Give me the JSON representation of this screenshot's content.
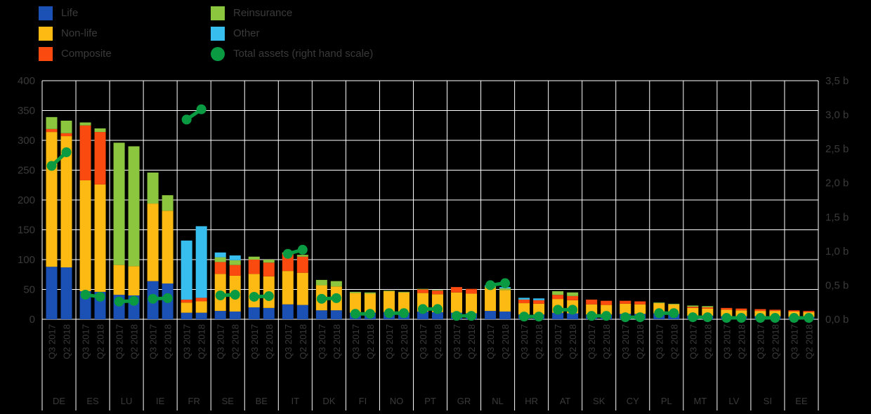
{
  "legend": {
    "items": [
      {
        "label": "Life",
        "color": "#1b50b4",
        "shape": "square"
      },
      {
        "label": "Non-life",
        "color": "#fdba12",
        "shape": "square"
      },
      {
        "label": "Composite",
        "color": "#fb4a0f",
        "shape": "square"
      },
      {
        "label": "Reinsurance",
        "color": "#8cc63e",
        "shape": "square"
      },
      {
        "label": "Other",
        "color": "#38bdef",
        "shape": "square"
      },
      {
        "label": "Total assets (right hand scale)",
        "color": "#0a9a41",
        "shape": "circle"
      }
    ]
  },
  "chart_data": {
    "type": "bar",
    "stacked": true,
    "grid": true,
    "series_names": [
      "Life",
      "Non-life",
      "Composite",
      "Reinsurance",
      "Other"
    ],
    "series_keys": [
      "life",
      "non_life",
      "composite",
      "reinsurance",
      "other"
    ],
    "dot_series_name": "Total assets (right hand scale)",
    "periods": [
      "Q3 2017",
      "Q2 2018"
    ],
    "left_axis": {
      "ticks": [
        "400",
        "350",
        "300",
        "250",
        "200",
        "150",
        "100",
        "50",
        "0"
      ],
      "min": 0,
      "max": 400
    },
    "right_axis": {
      "ticks": [
        "3,5 b",
        "3,0 b",
        "2,5 b",
        "2,0 b",
        "1,5 b",
        "1,0 b",
        "0,5 b",
        "0,0 b"
      ],
      "min": 0,
      "max": 3.5
    },
    "colors": {
      "life": "#1b50b4",
      "non_life": "#fdba12",
      "composite": "#fb4a0f",
      "reinsurance": "#8cc63e",
      "other": "#38bdef",
      "total_assets": "#0a9a41",
      "grid": "#ffffff",
      "text": "#3a3a3a",
      "background": "#000000"
    },
    "countries": [
      {
        "code": "DE",
        "values": [
          [
            88,
            226,
            5,
            20,
            0
          ],
          [
            87,
            220,
            5,
            21,
            0
          ]
        ],
        "assets": [
          2.25,
          2.45
        ]
      },
      {
        "code": "ES",
        "values": [
          [
            47,
            186,
            92,
            5,
            0
          ],
          [
            46,
            180,
            88,
            6,
            0
          ]
        ],
        "assets": [
          0.36,
          0.33
        ]
      },
      {
        "code": "LU",
        "values": [
          [
            41,
            50,
            0,
            205,
            0
          ],
          [
            40,
            49,
            0,
            201,
            0
          ]
        ],
        "assets": [
          0.26,
          0.27
        ]
      },
      {
        "code": "IE",
        "values": [
          [
            64,
            130,
            0,
            52,
            0
          ],
          [
            60,
            122,
            0,
            26,
            0
          ]
        ],
        "assets": [
          0.3,
          0.31
        ]
      },
      {
        "code": "FR",
        "values": [
          [
            11,
            17,
            5,
            0,
            99
          ],
          [
            11,
            19,
            6,
            0,
            120
          ]
        ],
        "assets": [
          2.93,
          3.08
        ]
      },
      {
        "code": "SE",
        "values": [
          [
            14,
            62,
            20,
            8,
            8
          ],
          [
            13,
            60,
            18,
            8,
            8
          ]
        ],
        "assets": [
          0.35,
          0.36
        ]
      },
      {
        "code": "BE",
        "values": [
          [
            20,
            56,
            24,
            5,
            0
          ],
          [
            19,
            53,
            23,
            5,
            0
          ]
        ],
        "assets": [
          0.33,
          0.34
        ]
      },
      {
        "code": "IT",
        "values": [
          [
            25,
            56,
            28,
            3,
            0
          ],
          [
            24,
            54,
            27,
            3,
            0
          ]
        ],
        "assets": [
          0.96,
          1.02
        ]
      },
      {
        "code": "DK",
        "values": [
          [
            15,
            42,
            0,
            9,
            0
          ],
          [
            15,
            40,
            0,
            9,
            0
          ]
        ],
        "assets": [
          0.3,
          0.31
        ]
      },
      {
        "code": "FI",
        "values": [
          [
            11,
            33,
            0,
            2,
            0
          ],
          [
            11,
            32,
            0,
            2,
            0
          ]
        ],
        "assets": [
          0.08,
          0.08
        ]
      },
      {
        "code": "NO",
        "values": [
          [
            12,
            35,
            0,
            1,
            0
          ],
          [
            11,
            34,
            0,
            1,
            0
          ]
        ],
        "assets": [
          0.09,
          0.09
        ]
      },
      {
        "code": "PT",
        "values": [
          [
            13,
            31,
            6,
            1,
            0
          ],
          [
            12,
            30,
            6,
            1,
            0
          ]
        ],
        "assets": [
          0.15,
          0.15
        ]
      },
      {
        "code": "GR",
        "values": [
          [
            11,
            34,
            9,
            0,
            0
          ],
          [
            10,
            33,
            8,
            0,
            0
          ]
        ],
        "assets": [
          0.05,
          0.05
        ]
      },
      {
        "code": "NL",
        "values": [
          [
            14,
            38,
            0,
            3,
            2
          ],
          [
            13,
            36,
            0,
            3,
            2
          ]
        ],
        "assets": [
          0.5,
          0.53
        ]
      },
      {
        "code": "HR",
        "values": [
          [
            8,
            19,
            6,
            0,
            3
          ],
          [
            8,
            18,
            6,
            0,
            3
          ]
        ],
        "assets": [
          0.04,
          0.04
        ]
      },
      {
        "code": "AT",
        "values": [
          [
            11,
            23,
            7,
            6,
            0
          ],
          [
            10,
            22,
            7,
            6,
            0
          ]
        ],
        "assets": [
          0.14,
          0.14
        ]
      },
      {
        "code": "SK",
        "values": [
          [
            8,
            17,
            8,
            0,
            0
          ],
          [
            8,
            16,
            7,
            0,
            0
          ]
        ],
        "assets": [
          0.05,
          0.05
        ]
      },
      {
        "code": "CY",
        "values": [
          [
            9,
            17,
            5,
            0,
            0
          ],
          [
            9,
            16,
            5,
            0,
            0
          ]
        ],
        "assets": [
          0.03,
          0.03
        ]
      },
      {
        "code": "PL",
        "values": [
          [
            10,
            17,
            0,
            1,
            0
          ],
          [
            9,
            16,
            0,
            1,
            0
          ]
        ],
        "assets": [
          0.09,
          0.09
        ]
      },
      {
        "code": "MT",
        "values": [
          [
            6,
            13,
            2,
            2,
            0
          ],
          [
            6,
            12,
            2,
            2,
            0
          ]
        ],
        "assets": [
          0.03,
          0.03
        ]
      },
      {
        "code": "LV",
        "values": [
          [
            5,
            11,
            3,
            0,
            0
          ],
          [
            5,
            10,
            3,
            0,
            0
          ]
        ],
        "assets": [
          0.02,
          0.02
        ]
      },
      {
        "code": "SI",
        "values": [
          [
            5,
            9,
            3,
            0,
            0
          ],
          [
            5,
            9,
            2,
            0,
            0
          ]
        ],
        "assets": [
          0.02,
          0.02
        ]
      },
      {
        "code": "EE",
        "values": [
          [
            4,
            9,
            2,
            0,
            0
          ],
          [
            4,
            8,
            2,
            0,
            0
          ]
        ],
        "assets": [
          0.02,
          0.02
        ]
      }
    ]
  }
}
